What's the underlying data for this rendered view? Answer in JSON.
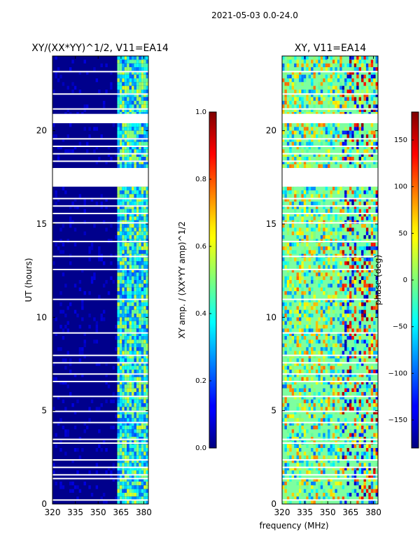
{
  "figure": {
    "suptitle": "2021-05-03 0.0-24.0",
    "shared_xlabel": "frequency (MHz)"
  },
  "chart_data": [
    {
      "type": "heatmap",
      "title": "XY/(XX*YY)^1/2, V11=EA14",
      "xlabel": "",
      "ylabel": "UT (hours)",
      "xlim": [
        320,
        383
      ],
      "ylim": [
        0,
        24
      ],
      "xticks": [
        320,
        335,
        350,
        365,
        380
      ],
      "yticks": [
        0,
        5,
        10,
        15,
        20
      ],
      "colorbar": {
        "label": "XY amp. / (XX*YY amp)^1/2",
        "range": [
          0.0,
          1.0
        ],
        "ticks": [
          "0.0",
          "0.2",
          "0.4",
          "0.6",
          "0.8",
          "1.0"
        ],
        "colormap": "jet"
      },
      "flagged_hours": [
        [
          17.0,
          18.0
        ],
        [
          20.4,
          20.9
        ]
      ]
    },
    {
      "type": "heatmap",
      "title": "XY, V11=EA14",
      "xlabel": "",
      "ylabel": "",
      "xlim": [
        320,
        383
      ],
      "ylim": [
        0,
        24
      ],
      "xticks": [
        320,
        335,
        350,
        365,
        380
      ],
      "yticks": [
        0,
        5,
        10,
        15,
        20
      ],
      "colorbar": {
        "label": "phase (deg)",
        "range": [
          -180,
          180
        ],
        "ticks": [
          "−150",
          "−100",
          "−50",
          "0",
          "50",
          "100",
          "150"
        ],
        "colormap": "jet"
      },
      "flagged_hours": [
        [
          17.0,
          18.0
        ],
        [
          20.4,
          20.9
        ]
      ]
    }
  ]
}
